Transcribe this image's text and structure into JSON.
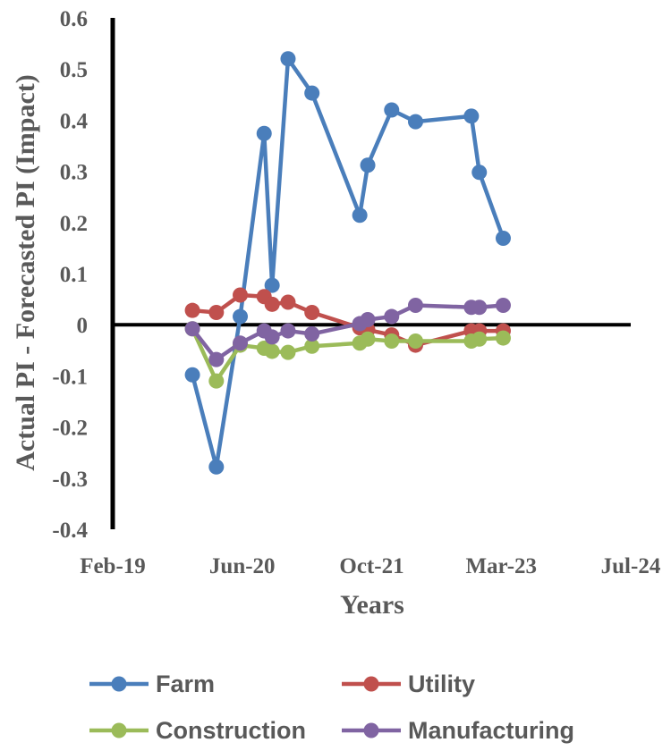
{
  "chart_data": {
    "type": "line",
    "title": "",
    "xlabel": "Years",
    "ylabel": "Actual PI - Forecasted PI (Impact)",
    "x_ticks": [
      "Feb-19",
      "Jun-20",
      "Oct-21",
      "Mar-23",
      "Jul-24"
    ],
    "y_ticks": [
      "0.6",
      "0.5",
      "0.4",
      "0.3",
      "0.2",
      "0.1",
      "0",
      "-0.1",
      "-0.2",
      "-0.3",
      "-0.4"
    ],
    "xlim": [
      "2019-02",
      "2024-07"
    ],
    "ylim": [
      -0.4,
      0.6
    ],
    "grid": false,
    "legend_position": "bottom",
    "x": [
      "2019-12",
      "2020-03",
      "2020-06",
      "2020-09",
      "2020-10",
      "2020-12",
      "2021-03",
      "2021-09",
      "2021-10",
      "2022-01",
      "2022-04",
      "2022-07",
      "2022-11",
      "2022-12",
      "2023-03"
    ],
    "series": [
      {
        "name": "Farm",
        "color": "#4A7EBB",
        "values": [
          -0.098,
          -0.278,
          0.016,
          0.374,
          0.077,
          0.52,
          0.453,
          0.214,
          0.312,
          0.42,
          0.397,
          null,
          0.408,
          0.298,
          0.169
        ]
      },
      {
        "name": "Utility",
        "color": "#C0504D",
        "values": [
          0.028,
          0.024,
          0.058,
          0.055,
          0.04,
          0.044,
          0.024,
          -0.006,
          -0.01,
          -0.02,
          -0.04,
          null,
          -0.012,
          -0.012,
          -0.012
        ]
      },
      {
        "name": "Construction",
        "color": "#9BBB59",
        "values": [
          -0.008,
          -0.11,
          -0.04,
          -0.046,
          -0.052,
          -0.054,
          -0.042,
          -0.036,
          -0.028,
          -0.032,
          -0.032,
          null,
          -0.032,
          -0.028,
          -0.026
        ]
      },
      {
        "name": "Manufacturing",
        "color": "#8064A2",
        "values": [
          -0.008,
          -0.068,
          -0.036,
          -0.012,
          -0.024,
          -0.012,
          -0.018,
          0.002,
          0.01,
          0.016,
          0.038,
          null,
          0.034,
          0.034,
          0.038
        ]
      }
    ]
  }
}
